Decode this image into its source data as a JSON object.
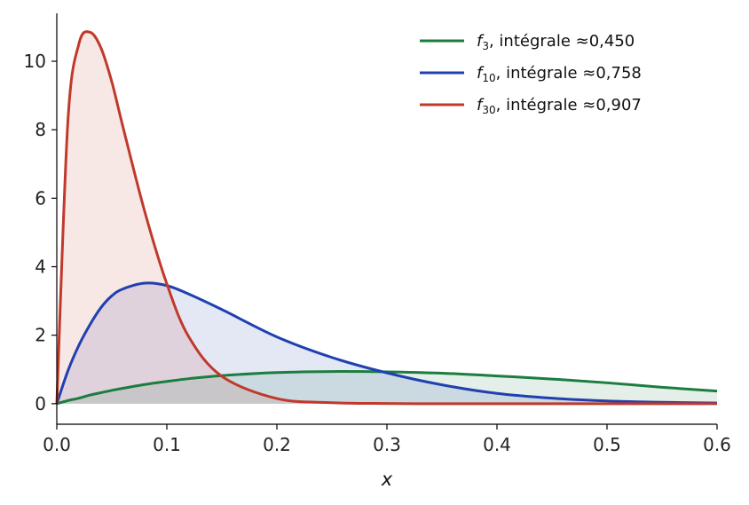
{
  "chart_data": {
    "type": "area",
    "xlabel": "x",
    "ylabel": "",
    "xlim": [
      0,
      0.6
    ],
    "ylim": [
      -0.6,
      11.4
    ],
    "x_ticks": [
      0.0,
      0.1,
      0.2,
      0.3,
      0.4,
      0.5,
      0.6
    ],
    "x_tick_labels": [
      "0.0",
      "0.1",
      "0.2",
      "0.3",
      "0.4",
      "0.5",
      "0.6"
    ],
    "y_ticks": [
      0,
      2,
      4,
      6,
      8,
      10
    ],
    "y_tick_labels": [
      "0",
      "2",
      "4",
      "6",
      "8",
      "10"
    ],
    "grid": false,
    "legend_position": "top-right",
    "x": [
      0,
      0.01,
      0.02,
      0.03,
      0.04,
      0.05,
      0.06,
      0.08,
      0.1,
      0.12,
      0.15,
      0.2,
      0.25,
      0.3,
      0.35,
      0.4,
      0.45,
      0.5,
      0.55,
      0.6
    ],
    "series": [
      {
        "name": "f3",
        "symbol": "f",
        "subscript": "3",
        "legend_suffix": ", intégrale ≈0,450",
        "color": "#1b7d3f",
        "values": [
          0,
          0.09,
          0.16,
          0.25,
          0.32,
          0.39,
          0.45,
          0.56,
          0.65,
          0.73,
          0.82,
          0.91,
          0.94,
          0.93,
          0.89,
          0.81,
          0.72,
          0.61,
          0.48,
          0.37
        ]
      },
      {
        "name": "f10",
        "symbol": "f",
        "subscript": "10",
        "legend_suffix": ", intégrale ≈0,758",
        "color": "#2040b0",
        "values": [
          0,
          0.95,
          1.7,
          2.3,
          2.8,
          3.15,
          3.35,
          3.52,
          3.45,
          3.2,
          2.75,
          1.95,
          1.35,
          0.9,
          0.55,
          0.3,
          0.16,
          0.08,
          0.04,
          0.02
        ]
      },
      {
        "name": "f30",
        "symbol": "f",
        "subscript": "30",
        "legend_suffix": ", intégrale ≈0,907",
        "color": "#c0392b",
        "values": [
          0,
          8.2,
          10.5,
          10.85,
          10.4,
          9.4,
          8.1,
          5.6,
          3.5,
          1.95,
          0.8,
          0.15,
          0.03,
          0.005,
          0,
          0,
          0,
          0,
          0,
          0
        ]
      }
    ]
  }
}
